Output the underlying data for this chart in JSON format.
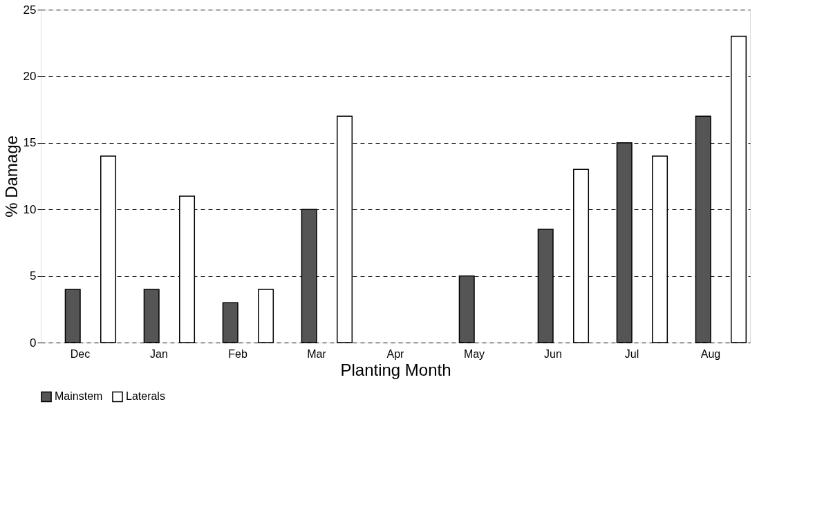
{
  "chart_data": {
    "type": "bar",
    "xlabel": "Planting Month",
    "ylabel": "% Damage",
    "categories": [
      "Dec",
      "Jan",
      "Feb",
      "Mar",
      "Apr",
      "May",
      "Jun",
      "Jul",
      "Aug"
    ],
    "series": [
      {
        "name": "Mainstem",
        "color": "#555555",
        "values": [
          4,
          4,
          3,
          10,
          0,
          5,
          8.5,
          15,
          17
        ]
      },
      {
        "name": "Laterals",
        "color": "#ffffff",
        "values": [
          14,
          11,
          4,
          17,
          0,
          0,
          13,
          14,
          23
        ]
      }
    ],
    "ylim": [
      0,
      25
    ],
    "yticks": [
      0,
      5,
      10,
      15,
      20,
      25
    ],
    "grid": "y",
    "legend": "bottom"
  }
}
